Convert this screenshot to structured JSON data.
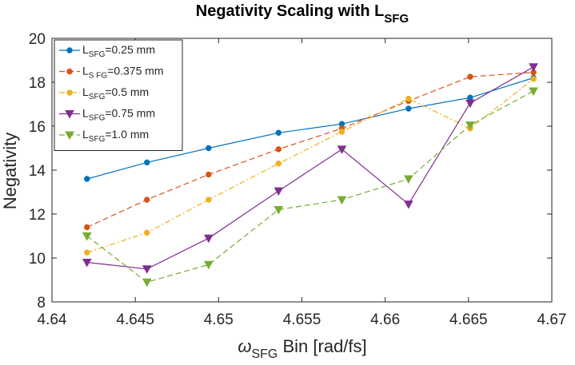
{
  "chart_data": {
    "type": "line",
    "title": {
      "main": "Negativity Scaling with L",
      "sub": "SFG"
    },
    "xlabel": {
      "symbol": "ω",
      "sub": "SFG",
      "rest": " Bin [rad/fs]"
    },
    "ylabel": "Negativity",
    "xlim": [
      4.64,
      4.67
    ],
    "ylim": [
      8,
      20
    ],
    "xticks": [
      4.64,
      4.645,
      4.65,
      4.655,
      4.66,
      4.665,
      4.67
    ],
    "xtick_labels": [
      "4.64",
      "4.645",
      "4.65",
      "4.655",
      "4.66",
      "4.665",
      "4.67"
    ],
    "yticks": [
      8,
      10,
      12,
      14,
      16,
      18,
      20
    ],
    "ytick_labels": [
      "8",
      "10",
      "12",
      "14",
      "16",
      "18",
      "20"
    ],
    "x": [
      4.6421,
      4.6457,
      4.6494,
      4.6536,
      4.6574,
      4.6614,
      4.6651,
      4.6689
    ],
    "legend_location": "top-left",
    "series": [
      {
        "legend": {
          "pre": "L",
          "sub": "SFG",
          "post": "=0.25 mm"
        },
        "color": "#0072BD",
        "dash": "solid",
        "marker": "circle",
        "values": [
          13.6,
          14.35,
          15.0,
          15.7,
          16.1,
          16.8,
          17.3,
          18.2
        ]
      },
      {
        "legend": {
          "pre": "L",
          "sub": "S FG",
          "post": "=0.375 mm"
        },
        "color": "#D95319",
        "dash": "dashed",
        "marker": "circle",
        "values": [
          11.4,
          12.65,
          13.8,
          14.95,
          15.9,
          17.15,
          18.25,
          18.45
        ]
      },
      {
        "legend": {
          "pre": "L",
          "sub": "SFG",
          "post": "=0.5 mm"
        },
        "color": "#EDB120",
        "dash": "dashdot",
        "marker": "circle",
        "values": [
          10.25,
          11.15,
          12.65,
          14.3,
          15.75,
          17.25,
          15.9,
          18.15
        ]
      },
      {
        "legend": {
          "pre": "L",
          "sub": "SFG",
          "post": "=0.75 mm"
        },
        "color": "#7E2F8E",
        "dash": "solid",
        "marker": "triangle-down",
        "values": [
          9.8,
          9.5,
          10.9,
          13.05,
          14.95,
          12.45,
          17.05,
          18.7
        ]
      },
      {
        "legend": {
          "pre": "L",
          "sub": "SFG",
          "post": "=1.0 mm"
        },
        "color": "#77AC30",
        "dash": "dashed",
        "marker": "triangle-down",
        "values": [
          11.0,
          8.9,
          9.7,
          12.2,
          12.65,
          13.6,
          16.05,
          17.6
        ]
      }
    ]
  }
}
